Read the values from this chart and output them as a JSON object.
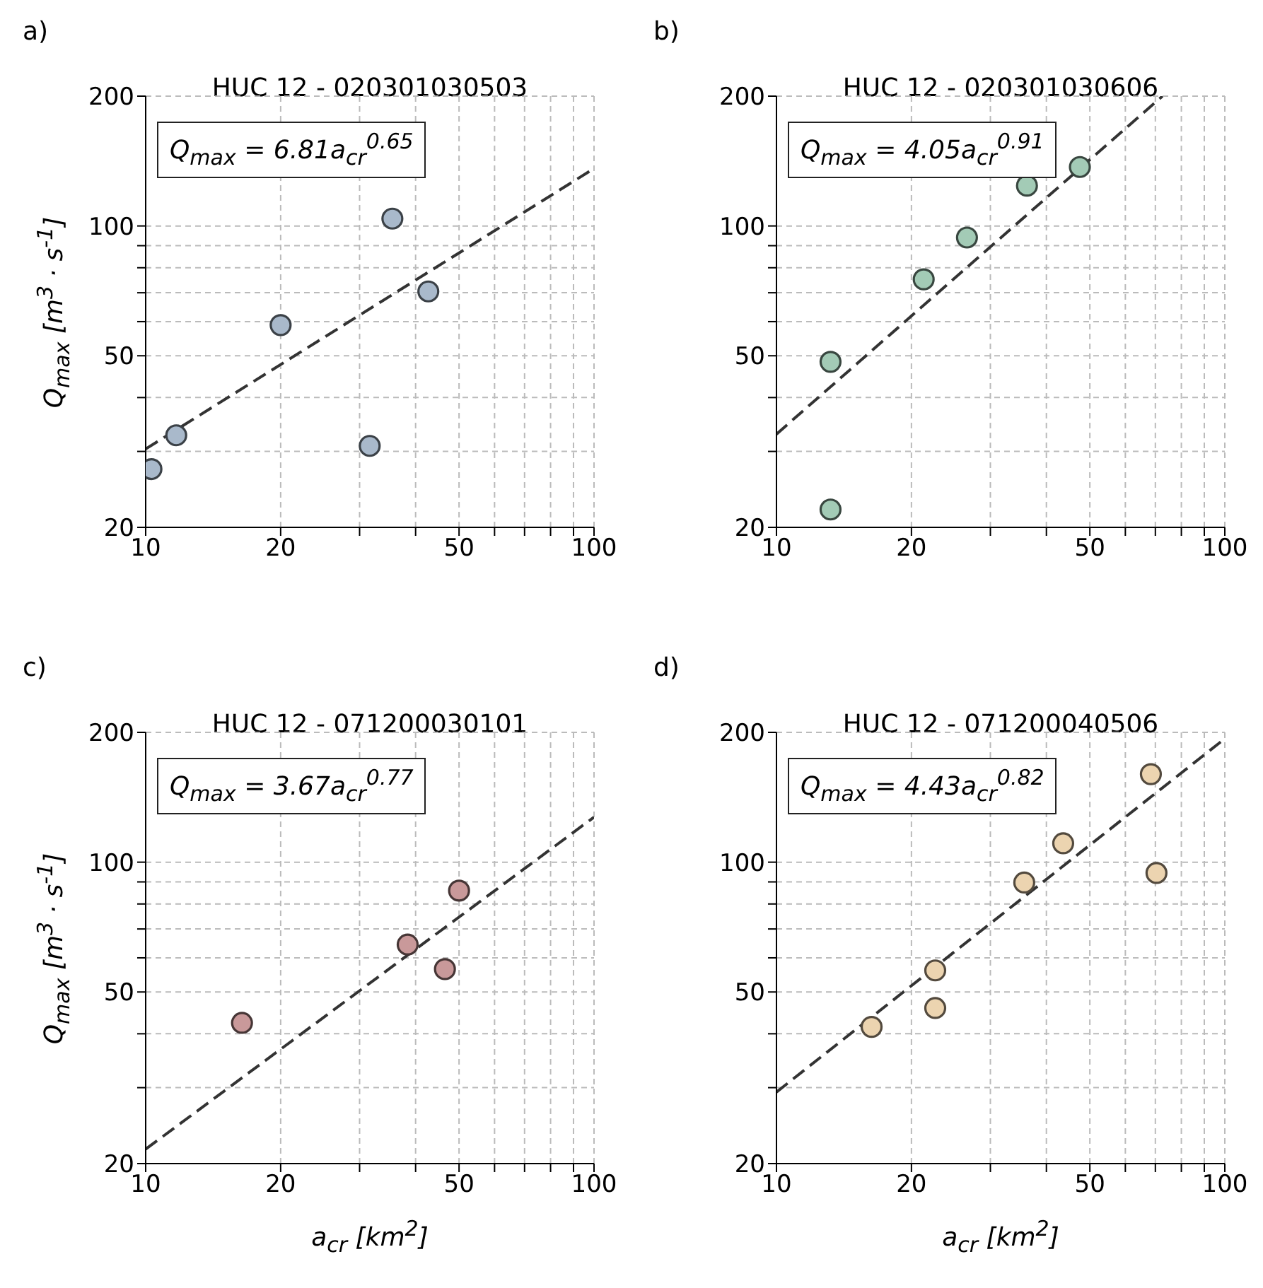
{
  "chart_data": [
    {
      "type": "scatter",
      "title": "HUC 12 - 020301030503",
      "ylabel": "Q$_{max}$  [m$^{3}$ · s$^{-1}$]",
      "log": "xy",
      "grid": true,
      "legend": false,
      "xlim": [
        10,
        100
      ],
      "ylim": [
        20,
        200
      ],
      "xticks": [
        10,
        20,
        {
          "value": 30,
          "label": null
        },
        {
          "value": 40,
          "label": null
        },
        50,
        {
          "value": 60,
          "label": null
        },
        {
          "value": 70,
          "label": null
        },
        {
          "value": 80,
          "label": null
        },
        {
          "value": 90,
          "label": null
        },
        100
      ],
      "yticks": [
        20,
        {
          "value": 30,
          "label": null
        },
        {
          "value": 40,
          "label": null
        },
        50,
        {
          "value": 60,
          "label": null
        },
        {
          "value": 70,
          "label": null
        },
        {
          "value": 80,
          "label": null
        },
        {
          "value": 90,
          "label": null
        },
        100,
        200
      ],
      "annotations": [
        "a)",
        "Q$_{max}$ = 6.81a$_{cr}$$^{0.65}$"
      ],
      "series": [
        {
          "type": "scatter",
          "marker": "circle",
          "color": "#a9b9cb",
          "x": [
            10.3,
            11.7,
            20.0,
            31.6,
            35.5,
            42.7
          ],
          "values": [
            27.3,
            32.7,
            58.9,
            30.9,
            104,
            70.5
          ]
        },
        {
          "type": "line",
          "marker": "none",
          "line_style": "dashed",
          "color": "#333333",
          "x": [
            10,
            100
          ],
          "values": [
            30.4,
            135.9
          ]
        }
      ]
    },
    {
      "type": "scatter",
      "title": "HUC 12 - 020301030606",
      "log": "xy",
      "grid": true,
      "legend": false,
      "xlim": [
        10,
        100
      ],
      "ylim": [
        20,
        200
      ],
      "xticks": [
        10,
        20,
        {
          "value": 30,
          "label": null
        },
        {
          "value": 40,
          "label": null
        },
        50,
        {
          "value": 60,
          "label": null
        },
        {
          "value": 70,
          "label": null
        },
        {
          "value": 80,
          "label": null
        },
        {
          "value": 90,
          "label": null
        },
        100
      ],
      "yticks": [
        20,
        {
          "value": 30,
          "label": null
        },
        {
          "value": 40,
          "label": null
        },
        50,
        {
          "value": 60,
          "label": null
        },
        {
          "value": 70,
          "label": null
        },
        {
          "value": 80,
          "label": null
        },
        {
          "value": 90,
          "label": null
        },
        100,
        200
      ],
      "annotations": [
        "b)",
        "Q$_{max}$ = 4.05a$_{cr}$$^{0.91}$"
      ],
      "series": [
        {
          "type": "scatter",
          "marker": "circle",
          "color": "#a3cbb6",
          "x": [
            13.2,
            13.2,
            21.3,
            26.6,
            36.2,
            47.5
          ],
          "values": [
            48.4,
            22.0,
            75.2,
            94,
            124,
            137
          ]
        },
        {
          "type": "line",
          "marker": "none",
          "line_style": "dashed",
          "color": "#333333",
          "x": [
            10,
            72.6
          ],
          "values": [
            32.9,
            200
          ]
        }
      ]
    },
    {
      "type": "scatter",
      "title": "HUC 12 - 071200030101",
      "ylabel": "Q$_{max}$  [m$^{3}$ · s$^{-1}$]",
      "xlabel": "a$_{cr}$ [km$^{2}$]",
      "log": "xy",
      "grid": true,
      "legend": false,
      "xlim": [
        10,
        100
      ],
      "ylim": [
        20,
        200
      ],
      "xticks": [
        10,
        20,
        {
          "value": 30,
          "label": null
        },
        {
          "value": 40,
          "label": null
        },
        50,
        {
          "value": 60,
          "label": null
        },
        {
          "value": 70,
          "label": null
        },
        {
          "value": 80,
          "label": null
        },
        {
          "value": 90,
          "label": null
        },
        100
      ],
      "yticks": [
        20,
        {
          "value": 30,
          "label": null
        },
        {
          "value": 40,
          "label": null
        },
        50,
        {
          "value": 60,
          "label": null
        },
        {
          "value": 70,
          "label": null
        },
        {
          "value": 80,
          "label": null
        },
        {
          "value": 90,
          "label": null
        },
        100,
        200
      ],
      "annotations": [
        "c)",
        "Q$_{max}$ = 3.67a$_{cr}$$^{0.77}$"
      ],
      "series": [
        {
          "type": "scatter",
          "marker": "circle",
          "color": "#c9999a",
          "x": [
            16.4,
            38.4,
            46.5,
            50.0
          ],
          "values": [
            42.4,
            64.4,
            56.5,
            85.9
          ]
        },
        {
          "type": "line",
          "marker": "none",
          "line_style": "dashed",
          "color": "#333333",
          "x": [
            10,
            100
          ],
          "values": [
            21.6,
            127.2
          ]
        }
      ]
    },
    {
      "type": "scatter",
      "title": "HUC 12 - 071200040506",
      "xlabel": "a$_{cr}$ [km$^{2}$]",
      "log": "xy",
      "grid": true,
      "legend": false,
      "xlim": [
        10,
        100
      ],
      "ylim": [
        20,
        200
      ],
      "xticks": [
        10,
        20,
        {
          "value": 30,
          "label": null
        },
        {
          "value": 40,
          "label": null
        },
        50,
        {
          "value": 60,
          "label": null
        },
        {
          "value": 70,
          "label": null
        },
        {
          "value": 80,
          "label": null
        },
        {
          "value": 90,
          "label": null
        },
        100
      ],
      "yticks": [
        20,
        {
          "value": 30,
          "label": null
        },
        {
          "value": 40,
          "label": null
        },
        50,
        {
          "value": 60,
          "label": null
        },
        {
          "value": 70,
          "label": null
        },
        {
          "value": 80,
          "label": null
        },
        {
          "value": 90,
          "label": null
        },
        100,
        200
      ],
      "annotations": [
        "d)",
        "Q$_{max}$ = 4.43a$_{cr}$$^{0.82}$"
      ],
      "series": [
        {
          "type": "scatter",
          "marker": "circle",
          "color": "#ecd4b0",
          "x": [
            16.3,
            22.6,
            22.6,
            35.7,
            43.6,
            68.4,
            70.4
          ],
          "values": [
            41.5,
            56.1,
            45.9,
            89.7,
            110.6,
            160,
            94.4
          ]
        },
        {
          "type": "line",
          "marker": "none",
          "line_style": "dashed",
          "color": "#333333",
          "x": [
            10,
            100
          ],
          "values": [
            29.3,
            193.4
          ]
        }
      ]
    }
  ]
}
